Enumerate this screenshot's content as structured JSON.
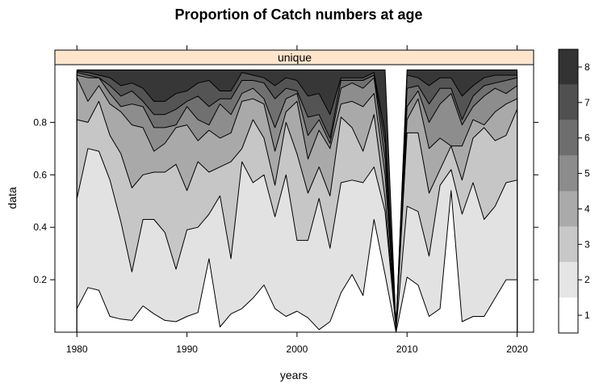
{
  "chart_data": {
    "type": "area",
    "title": "Proportion of Catch numbers at age",
    "xlabel": "years",
    "ylabel": "data",
    "panel_label": "unique",
    "xlim": [
      1978,
      2021.5
    ],
    "ylim": [
      0,
      1.02
    ],
    "x_ticks": [
      1980,
      1990,
      2000,
      2010,
      2020
    ],
    "y_ticks": [
      0.2,
      0.4,
      0.6,
      0.8
    ],
    "y_tick_labels": [
      "0.2",
      "0.4",
      "0.6",
      "0.8"
    ],
    "x_tick_labels": [
      "1980",
      "1990",
      "2000",
      "2010",
      "2020"
    ],
    "legend": {
      "position": "right",
      "labels": [
        "1",
        "2",
        "3",
        "4",
        "5",
        "6",
        "7",
        "8"
      ],
      "colors": [
        "#ffffff",
        "#e5e5e5",
        "#c8c8c8",
        "#aaaaaa",
        "#8c8c8c",
        "#6e6e6e",
        "#505050",
        "#333333"
      ]
    },
    "colors": {
      "strip": "#ffe5cc",
      "fills": [
        "#ffffff",
        "#e2e2e2",
        "#c6c6c6",
        "#a9a9a9",
        "#8d8d8d",
        "#707070",
        "#545454",
        "#373737"
      ]
    },
    "x": [
      1980,
      1981,
      1982,
      1983,
      1984,
      1985,
      1986,
      1987,
      1988,
      1989,
      1990,
      1991,
      1992,
      1993,
      1994,
      1995,
      1996,
      1997,
      1998,
      1999,
      2000,
      2001,
      2002,
      2003,
      2004,
      2005,
      2006,
      2007,
      2008,
      2009,
      2010,
      2011,
      2012,
      2013,
      2014,
      2015,
      2016,
      2017,
      2018,
      2019,
      2020
    ],
    "cumulative": [
      {
        "name": "1",
        "values": [
          0.09,
          0.17,
          0.16,
          0.06,
          0.05,
          0.045,
          0.1,
          0.07,
          0.045,
          0.04,
          0.06,
          0.075,
          0.28,
          0.02,
          0.07,
          0.09,
          0.13,
          0.18,
          0.09,
          0.06,
          0.08,
          0.055,
          0.01,
          0.04,
          0.15,
          0.22,
          0.14,
          0.43,
          0.22,
          0.0,
          0.21,
          0.18,
          0.06,
          0.09,
          0.54,
          0.04,
          0.06,
          0.06,
          0.13,
          0.2,
          0.2
        ]
      },
      {
        "name": "2",
        "values": [
          0.51,
          0.7,
          0.69,
          0.58,
          0.42,
          0.23,
          0.43,
          0.43,
          0.38,
          0.24,
          0.39,
          0.4,
          0.45,
          0.52,
          0.28,
          0.65,
          0.57,
          0.6,
          0.44,
          0.6,
          0.35,
          0.35,
          0.51,
          0.32,
          0.57,
          0.58,
          0.57,
          0.63,
          0.46,
          0.01,
          0.48,
          0.46,
          0.29,
          0.56,
          0.62,
          0.45,
          0.57,
          0.43,
          0.48,
          0.57,
          0.58
        ]
      },
      {
        "name": "3",
        "values": [
          0.81,
          0.8,
          0.88,
          0.75,
          0.68,
          0.55,
          0.6,
          0.61,
          0.61,
          0.64,
          0.54,
          0.65,
          0.61,
          0.63,
          0.65,
          0.7,
          0.81,
          0.74,
          0.56,
          0.8,
          0.68,
          0.53,
          0.63,
          0.52,
          0.82,
          0.78,
          0.69,
          0.83,
          0.51,
          0.02,
          0.76,
          0.76,
          0.53,
          0.62,
          0.71,
          0.58,
          0.74,
          0.78,
          0.73,
          0.75,
          0.85
        ]
      },
      {
        "name": "4",
        "values": [
          0.97,
          0.88,
          0.94,
          0.87,
          0.84,
          0.79,
          0.78,
          0.69,
          0.72,
          0.78,
          0.79,
          0.73,
          0.77,
          0.74,
          0.76,
          0.88,
          0.89,
          0.87,
          0.69,
          0.84,
          0.88,
          0.66,
          0.77,
          0.7,
          0.87,
          0.88,
          0.86,
          0.91,
          0.6,
          0.02,
          0.81,
          0.89,
          0.7,
          0.74,
          0.71,
          0.71,
          0.81,
          0.79,
          0.84,
          0.87,
          0.89
        ]
      },
      {
        "name": "5",
        "values": [
          0.98,
          0.97,
          0.97,
          0.91,
          0.86,
          0.87,
          0.86,
          0.78,
          0.78,
          0.79,
          0.86,
          0.81,
          0.79,
          0.87,
          0.83,
          0.91,
          0.93,
          0.89,
          0.78,
          0.89,
          0.91,
          0.75,
          0.81,
          0.72,
          0.93,
          0.95,
          0.93,
          0.97,
          0.66,
          0.02,
          0.86,
          0.92,
          0.8,
          0.87,
          0.91,
          0.79,
          0.86,
          0.9,
          0.93,
          0.91,
          0.94
        ]
      },
      {
        "name": "6",
        "values": [
          0.99,
          0.98,
          0.97,
          0.94,
          0.9,
          0.92,
          0.88,
          0.83,
          0.83,
          0.85,
          0.88,
          0.9,
          0.86,
          0.89,
          0.89,
          0.96,
          0.96,
          0.95,
          0.89,
          0.93,
          0.92,
          0.82,
          0.83,
          0.74,
          0.96,
          0.96,
          0.96,
          0.98,
          0.72,
          0.02,
          0.93,
          0.94,
          0.87,
          0.93,
          0.93,
          0.81,
          0.9,
          0.94,
          0.95,
          0.96,
          0.97
        ]
      },
      {
        "name": "7",
        "values": [
          0.995,
          0.99,
          0.98,
          0.97,
          0.94,
          0.95,
          0.93,
          0.88,
          0.88,
          0.91,
          0.92,
          0.95,
          0.96,
          0.92,
          0.92,
          0.99,
          0.98,
          0.97,
          0.94,
          0.97,
          0.96,
          0.9,
          0.91,
          0.83,
          0.97,
          0.97,
          0.97,
          0.99,
          0.76,
          0.02,
          0.98,
          0.97,
          0.94,
          0.97,
          0.97,
          0.9,
          0.94,
          0.97,
          0.98,
          0.98,
          0.98
        ]
      },
      {
        "name": "8",
        "values": [
          1,
          1,
          1,
          1,
          1,
          1,
          1,
          1,
          1,
          1,
          1,
          1,
          1,
          1,
          1,
          1,
          1,
          1,
          1,
          1,
          1,
          1,
          1,
          1,
          1,
          1,
          1,
          1,
          1,
          0.02,
          1,
          1,
          1,
          1,
          1,
          1,
          1,
          1,
          1,
          1,
          1
        ]
      }
    ]
  }
}
